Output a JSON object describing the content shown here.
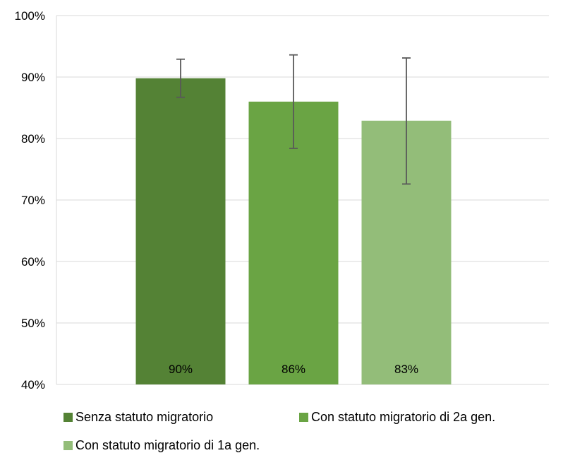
{
  "chart_data": {
    "type": "bar",
    "title": "",
    "xlabel": "",
    "ylabel": "",
    "ylim": [
      40,
      100
    ],
    "yticks": [
      40,
      50,
      60,
      70,
      80,
      90,
      100
    ],
    "ytick_labels": [
      "40%",
      "50%",
      "60%",
      "70%",
      "80%",
      "90%",
      "100%"
    ],
    "grid": true,
    "legend_position": "bottom",
    "categories": [
      "Senza statuto migratorio",
      "Con statuto migratorio di 2a gen.",
      "Con statuto migratorio di 1a gen."
    ],
    "series": [
      {
        "values": [
          89.8,
          86.0,
          82.9
        ],
        "data_labels": [
          "90%",
          "86%",
          "83%"
        ],
        "error_low": [
          86.7,
          78.4,
          72.6
        ],
        "error_high": [
          92.9,
          93.6,
          93.1
        ],
        "colors": [
          "#548235",
          "#6aa444",
          "#93bd79"
        ]
      }
    ],
    "legend": [
      {
        "label": "Senza statuto migratorio",
        "color": "#548235"
      },
      {
        "label": "Con statuto migratorio di 2a gen.",
        "color": "#6aa444"
      },
      {
        "label": "Con statuto migratorio di 1a gen.",
        "color": "#93bd79"
      }
    ],
    "grid_color": "#d9d9d9",
    "error_bar_color": "#595959"
  }
}
